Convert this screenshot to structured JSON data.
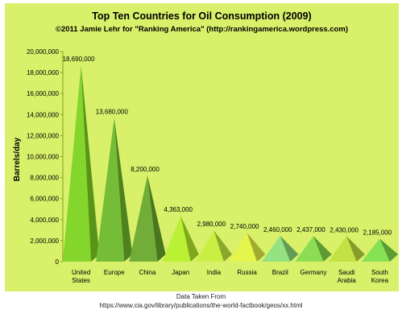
{
  "chart_data": {
    "type": "bar",
    "bar_shape": "pyramid",
    "title": "Top Ten Countries for Oil Consumption (2009)",
    "subtitle": "©2011 Jamie Lehr for \"Ranking America\" (http://rankingamerica.wordpress.com)",
    "xlabel": "",
    "ylabel": "Barrels/day",
    "categories": [
      "United States",
      "Europe",
      "China",
      "Japan",
      "India",
      "Russia",
      "Brazil",
      "Germany",
      "Saudi Arabia",
      "South Korea"
    ],
    "values": [
      18690000,
      13680000,
      8200000,
      4363000,
      2980000,
      2740000,
      2460000,
      2437000,
      2430000,
      2185000
    ],
    "value_labels": [
      "18,690,000",
      "13,680,000",
      "8,200,000",
      "4,363,000",
      "2,980,000",
      "2,740,000",
      "2,460,000",
      "2,437,000",
      "2,430,000",
      "2,185,000"
    ],
    "ylim": [
      0,
      20000000
    ],
    "yticks": [
      0,
      2000000,
      4000000,
      6000000,
      8000000,
      10000000,
      12000000,
      14000000,
      16000000,
      18000000,
      20000000
    ],
    "ytick_labels": [
      "0",
      "2,000,000",
      "4,000,000",
      "6,000,000",
      "8,000,000",
      "10,000,000",
      "12,000,000",
      "14,000,000",
      "16,000,000",
      "18,000,000",
      "20,000,000"
    ],
    "grid": false,
    "legend": "none",
    "colors": [
      "#7ed321",
      "#6fba2c",
      "#6aa92e",
      "#b7f02a",
      "#c6ee3a",
      "#e4f443",
      "#8ee07a",
      "#86db4a",
      "#bfe03a",
      "#7fe04a"
    ],
    "background_color": "#d8f06a"
  },
  "footer": {
    "line1": "Data Taken From",
    "line2": "https://www.cia.gov/library/publications/the-world-factbook/geos/xx.html"
  }
}
